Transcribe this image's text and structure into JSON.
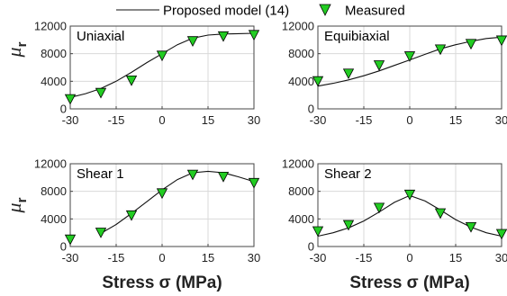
{
  "legend": {
    "model_label": "Proposed model (14)",
    "measured_label": "Measured"
  },
  "colors": {
    "marker_fill": "#22cc22",
    "line": "#111111",
    "grid": "#d9d9d9"
  },
  "y_label": "μ",
  "y_label_sub": "r",
  "x_label": "Stress σ (MPa)",
  "chart_data": [
    {
      "type": "line",
      "title": "Uniaxial",
      "x_ticks": [
        -30,
        -15,
        0,
        15,
        30
      ],
      "y_ticks": [
        0,
        4000,
        8000,
        12000
      ],
      "xlim": [
        -30,
        30
      ],
      "ylim": [
        0,
        12000
      ],
      "grid": true,
      "series": [
        {
          "name": "Proposed model (14)",
          "x": [
            -30,
            -25,
            -20,
            -15,
            -10,
            -5,
            0,
            5,
            10,
            15,
            20,
            25,
            30
          ],
          "y": [
            1650,
            2200,
            2950,
            4000,
            5300,
            6700,
            8000,
            9300,
            10250,
            10700,
            10850,
            10900,
            10950
          ]
        },
        {
          "name": "Measured",
          "x": [
            -30,
            -20,
            -10,
            0,
            10,
            20,
            30
          ],
          "y": [
            1500,
            2400,
            4200,
            7800,
            9900,
            10600,
            10800
          ]
        }
      ]
    },
    {
      "type": "line",
      "title": "Equibiaxial",
      "x_ticks": [
        -30,
        -15,
        0,
        15,
        30
      ],
      "y_ticks": [
        0,
        4000,
        8000,
        12000
      ],
      "xlim": [
        -30,
        30
      ],
      "ylim": [
        0,
        12000
      ],
      "grid": true,
      "series": [
        {
          "name": "Proposed model (14)",
          "x": [
            -30,
            -25,
            -20,
            -15,
            -10,
            -5,
            0,
            5,
            10,
            15,
            20,
            25,
            30
          ],
          "y": [
            3300,
            3700,
            4200,
            4800,
            5500,
            6300,
            7100,
            7900,
            8700,
            9300,
            9800,
            10200,
            10400
          ]
        },
        {
          "name": "Measured",
          "x": [
            -30,
            -20,
            -10,
            0,
            10,
            20,
            30
          ],
          "y": [
            4100,
            5200,
            6400,
            7700,
            8700,
            9500,
            10000
          ]
        }
      ]
    },
    {
      "type": "line",
      "title": "Shear 1",
      "x_ticks": [
        -30,
        -15,
        0,
        15,
        30
      ],
      "y_ticks": [
        0,
        4000,
        8000,
        12000
      ],
      "xlim": [
        -30,
        30
      ],
      "ylim": [
        0,
        12000
      ],
      "grid": true,
      "series": [
        {
          "name": "Proposed model (14)",
          "x": [
            -20,
            -15,
            -10,
            -5,
            0,
            5,
            10,
            15,
            20,
            25,
            30
          ],
          "y": [
            1900,
            3200,
            4800,
            6500,
            8200,
            9700,
            10700,
            10900,
            10700,
            10100,
            9400
          ]
        },
        {
          "name": "Measured",
          "x": [
            -30,
            -20,
            -10,
            0,
            10,
            20,
            30
          ],
          "y": [
            1100,
            2100,
            4600,
            7800,
            10500,
            10200,
            9300
          ]
        }
      ]
    },
    {
      "type": "line",
      "title": "Shear 2",
      "x_ticks": [
        -30,
        -15,
        0,
        15,
        30
      ],
      "y_ticks": [
        0,
        4000,
        8000,
        12000
      ],
      "xlim": [
        -30,
        30
      ],
      "ylim": [
        0,
        12000
      ],
      "grid": true,
      "series": [
        {
          "name": "Proposed model (14)",
          "x": [
            -30,
            -25,
            -20,
            -15,
            -10,
            -5,
            0,
            5,
            10,
            15,
            20,
            25,
            30
          ],
          "y": [
            1500,
            2000,
            2700,
            3700,
            5000,
            6400,
            7400,
            6600,
            5300,
            3900,
            2800,
            2000,
            1500
          ]
        },
        {
          "name": "Measured",
          "x": [
            -30,
            -20,
            -10,
            0,
            10,
            20,
            30
          ],
          "y": [
            2300,
            3200,
            5700,
            7600,
            4900,
            2900,
            1900
          ]
        }
      ]
    }
  ]
}
